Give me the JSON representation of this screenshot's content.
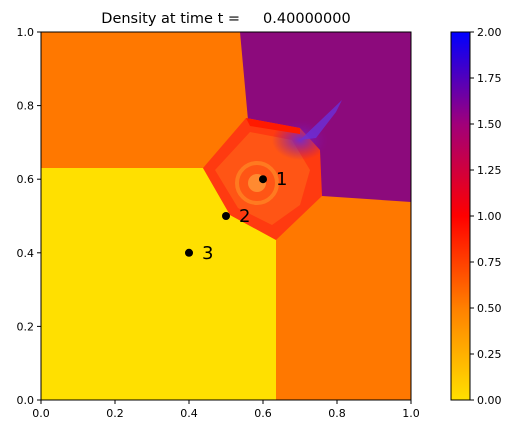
{
  "chart_data": {
    "type": "heatmap",
    "title": "Density at time t =     0.40000000",
    "xlabel": "",
    "ylabel": "",
    "xlim": [
      0,
      1
    ],
    "ylim": [
      0,
      1
    ],
    "x_ticks": [
      "0.0",
      "0.2",
      "0.4",
      "0.6",
      "0.8",
      "1.0"
    ],
    "y_ticks": [
      "0.0",
      "0.2",
      "0.4",
      "0.6",
      "0.8",
      "1.0"
    ],
    "grid": false,
    "colormap": {
      "range": [
        0,
        2
      ],
      "stops": [
        {
          "value": 0.0,
          "color": "#ffe000"
        },
        {
          "value": 0.5,
          "color": "#ff8000"
        },
        {
          "value": 1.0,
          "color": "#ff0000"
        },
        {
          "value": 1.5,
          "color": "#a0007a"
        },
        {
          "value": 2.0,
          "color": "#0000ff"
        }
      ],
      "ticks": [
        "0.00",
        "0.25",
        "0.50",
        "0.75",
        "1.00",
        "1.25",
        "1.50",
        "1.75",
        "2.00"
      ]
    },
    "regions": [
      {
        "region": "lower-left",
        "density": 0.1
      },
      {
        "region": "lower-right",
        "density": 0.55
      },
      {
        "region": "upper-left",
        "density": 0.55
      },
      {
        "region": "upper-right",
        "density": 1.5
      },
      {
        "region": "central interaction",
        "density": 0.75
      }
    ],
    "markers": [
      {
        "label": "1",
        "x": 0.6,
        "y": 0.6
      },
      {
        "label": "2",
        "x": 0.5,
        "y": 0.5
      },
      {
        "label": "3",
        "x": 0.4,
        "y": 0.4
      }
    ]
  }
}
